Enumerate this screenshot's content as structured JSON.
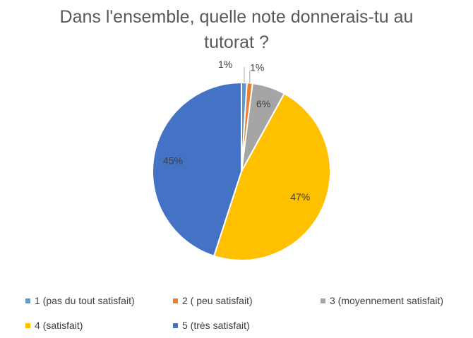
{
  "chart_data": {
    "type": "pie",
    "title_line1": "Dans l'ensemble, quelle note donnerais-tu au",
    "title_line2": "tutorat ?",
    "slices": [
      {
        "label": "1 (pas du tout satisfait)",
        "value": 1,
        "display": "1%",
        "color": "#5B9BD5"
      },
      {
        "label": "2 ( peu satisfait)",
        "value": 1,
        "display": "1%",
        "color": "#ED7D31"
      },
      {
        "label": "3 (moyennement satisfait)",
        "value": 6,
        "display": "6%",
        "color": "#A5A5A5"
      },
      {
        "label": "4 (satisfait)",
        "value": 47,
        "display": "47%",
        "color": "#FFC000"
      },
      {
        "label": "5 (très satisfait)",
        "value": 45,
        "display": "45%",
        "color": "#4472C4"
      }
    ],
    "legend_position": "bottom"
  }
}
